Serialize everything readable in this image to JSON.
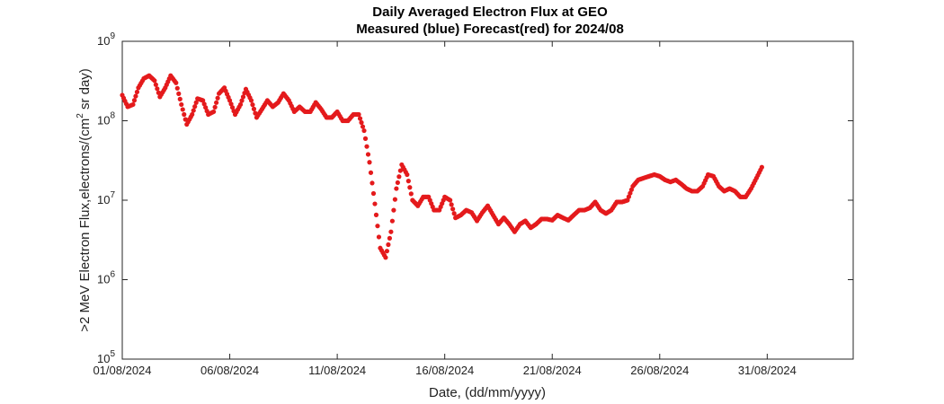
{
  "chart_data": {
    "type": "scatter",
    "title": "Daily Averaged Electron Flux at GEO",
    "subtitle": "Measured (blue) Forecast(red) for 2024/08",
    "xlabel": "Date, (dd/mm/yyyy)",
    "ylabel": ">2 MeV Electron Flux,electrons/(cm² sr day)",
    "ylabel_parts": [
      ">2 MeV Electron Flux,electrons/(cm",
      "2",
      " sr day)"
    ],
    "yscale": "log",
    "ylim": [
      100000,
      1000000000
    ],
    "xlim": [
      "01/08/2024 00:00",
      "04/09/2024 00:00"
    ],
    "x_ticks": [
      "01/08/2024",
      "06/08/2024",
      "11/08/2024",
      "16/08/2024",
      "21/08/2024",
      "26/08/2024",
      "31/08/2024"
    ],
    "y_ticks": [
      {
        "value": 100000,
        "base": "10",
        "exp": "5"
      },
      {
        "value": 1000000,
        "base": "10",
        "exp": "6"
      },
      {
        "value": 10000000,
        "base": "10",
        "exp": "7"
      },
      {
        "value": 100000000,
        "base": "10",
        "exp": "8"
      },
      {
        "value": 1000000000,
        "base": "10",
        "exp": "9"
      }
    ],
    "grid": false,
    "series": [
      {
        "color": "#e41a1c",
        "marker": "circle",
        "points": [
          [
            "01/08/2024 00:00",
            210000000.0
          ],
          [
            "01/08/2024 06:00",
            150000000.0
          ],
          [
            "01/08/2024 12:00",
            160000000.0
          ],
          [
            "01/08/2024 18:00",
            260000000.0
          ],
          [
            "02/08/2024 00:00",
            340000000.0
          ],
          [
            "02/08/2024 06:00",
            370000000.0
          ],
          [
            "02/08/2024 12:00",
            320000000.0
          ],
          [
            "02/08/2024 18:00",
            200000000.0
          ],
          [
            "03/08/2024 00:00",
            260000000.0
          ],
          [
            "03/08/2024 06:00",
            370000000.0
          ],
          [
            "03/08/2024 12:00",
            300000000.0
          ],
          [
            "03/08/2024 18:00",
            160000000.0
          ],
          [
            "04/08/2024 00:00",
            90000000.0
          ],
          [
            "04/08/2024 06:00",
            120000000.0
          ],
          [
            "04/08/2024 12:00",
            190000000.0
          ],
          [
            "04/08/2024 18:00",
            180000000.0
          ],
          [
            "05/08/2024 00:00",
            120000000.0
          ],
          [
            "05/08/2024 06:00",
            130000000.0
          ],
          [
            "05/08/2024 12:00",
            220000000.0
          ],
          [
            "05/08/2024 18:00",
            260000000.0
          ],
          [
            "06/08/2024 00:00",
            180000000.0
          ],
          [
            "06/08/2024 06:00",
            120000000.0
          ],
          [
            "06/08/2024 12:00",
            160000000.0
          ],
          [
            "06/08/2024 18:00",
            250000000.0
          ],
          [
            "07/08/2024 00:00",
            180000000.0
          ],
          [
            "07/08/2024 06:00",
            110000000.0
          ],
          [
            "07/08/2024 12:00",
            140000000.0
          ],
          [
            "07/08/2024 18:00",
            180000000.0
          ],
          [
            "08/08/2024 00:00",
            150000000.0
          ],
          [
            "08/08/2024 06:00",
            170000000.0
          ],
          [
            "08/08/2024 12:00",
            220000000.0
          ],
          [
            "08/08/2024 18:00",
            180000000.0
          ],
          [
            "09/08/2024 00:00",
            130000000.0
          ],
          [
            "09/08/2024 06:00",
            150000000.0
          ],
          [
            "09/08/2024 12:00",
            130000000.0
          ],
          [
            "09/08/2024 18:00",
            130000000.0
          ],
          [
            "10/08/2024 00:00",
            170000000.0
          ],
          [
            "10/08/2024 06:00",
            140000000.0
          ],
          [
            "10/08/2024 12:00",
            110000000.0
          ],
          [
            "10/08/2024 18:00",
            110000000.0
          ],
          [
            "11/08/2024 00:00",
            130000000.0
          ],
          [
            "11/08/2024 06:00",
            100000000.0
          ],
          [
            "11/08/2024 12:00",
            100000000.0
          ],
          [
            "11/08/2024 18:00",
            120000000.0
          ],
          [
            "12/08/2024 00:00",
            120000000.0
          ],
          [
            "12/08/2024 06:00",
            75000000.0
          ],
          [
            "12/08/2024 12:00",
            30000000.0
          ],
          [
            "12/08/2024 18:00",
            9000000.0
          ],
          [
            "13/08/2024 00:00",
            2500000.0
          ],
          [
            "13/08/2024 06:00",
            1900000.0
          ],
          [
            "13/08/2024 12:00",
            4000000.0
          ],
          [
            "13/08/2024 18:00",
            14000000.0
          ],
          [
            "14/08/2024 00:00",
            28000000.0
          ],
          [
            "14/08/2024 06:00",
            21000000.0
          ],
          [
            "14/08/2024 12:00",
            10000000.0
          ],
          [
            "14/08/2024 18:00",
            8500000.0
          ],
          [
            "15/08/2024 00:00",
            11000000.0
          ],
          [
            "15/08/2024 06:00",
            11000000.0
          ],
          [
            "15/08/2024 12:00",
            7500000.0
          ],
          [
            "15/08/2024 18:00",
            7500000.0
          ],
          [
            "16/08/2024 00:00",
            11000000.0
          ],
          [
            "16/08/2024 06:00",
            10000000.0
          ],
          [
            "16/08/2024 12:00",
            6000000.0
          ],
          [
            "16/08/2024 18:00",
            6500000.0
          ],
          [
            "17/08/2024 00:00",
            7500000.0
          ],
          [
            "17/08/2024 06:00",
            7000000.0
          ],
          [
            "17/08/2024 12:00",
            5500000.0
          ],
          [
            "17/08/2024 18:00",
            7000000.0
          ],
          [
            "18/08/2024 00:00",
            8500000.0
          ],
          [
            "18/08/2024 06:00",
            6500000.0
          ],
          [
            "18/08/2024 12:00",
            5000000.0
          ],
          [
            "18/08/2024 18:00",
            6000000.0
          ],
          [
            "19/08/2024 00:00",
            5000000.0
          ],
          [
            "19/08/2024 06:00",
            4000000.0
          ],
          [
            "19/08/2024 12:00",
            5000000.0
          ],
          [
            "19/08/2024 18:00",
            5500000.0
          ],
          [
            "20/08/2024 00:00",
            4500000.0
          ],
          [
            "20/08/2024 06:00",
            5000000.0
          ],
          [
            "20/08/2024 12:00",
            5800000.0
          ],
          [
            "20/08/2024 18:00",
            5800000.0
          ],
          [
            "21/08/2024 00:00",
            5600000.0
          ],
          [
            "21/08/2024 06:00",
            6500000.0
          ],
          [
            "21/08/2024 12:00",
            6000000.0
          ],
          [
            "21/08/2024 18:00",
            5600000.0
          ],
          [
            "22/08/2024 00:00",
            6500000.0
          ],
          [
            "22/08/2024 06:00",
            7500000.0
          ],
          [
            "22/08/2024 12:00",
            7500000.0
          ],
          [
            "22/08/2024 18:00",
            8000000.0
          ],
          [
            "23/08/2024 00:00",
            9500000.0
          ],
          [
            "23/08/2024 06:00",
            7500000.0
          ],
          [
            "23/08/2024 12:00",
            6800000.0
          ],
          [
            "23/08/2024 18:00",
            7500000.0
          ],
          [
            "24/08/2024 00:00",
            9500000.0
          ],
          [
            "24/08/2024 06:00",
            9500000.0
          ],
          [
            "24/08/2024 12:00",
            10000000.0
          ],
          [
            "24/08/2024 18:00",
            15000000.0
          ],
          [
            "25/08/2024 00:00",
            18000000.0
          ],
          [
            "25/08/2024 06:00",
            19000000.0
          ],
          [
            "25/08/2024 12:00",
            20000000.0
          ],
          [
            "25/08/2024 18:00",
            21000000.0
          ],
          [
            "26/08/2024 00:00",
            20000000.0
          ],
          [
            "26/08/2024 06:00",
            18000000.0
          ],
          [
            "26/08/2024 12:00",
            17000000.0
          ],
          [
            "26/08/2024 18:00",
            18000000.0
          ],
          [
            "27/08/2024 00:00",
            16000000.0
          ],
          [
            "27/08/2024 06:00",
            14000000.0
          ],
          [
            "27/08/2024 12:00",
            13000000.0
          ],
          [
            "27/08/2024 18:00",
            13000000.0
          ],
          [
            "28/08/2024 00:00",
            15000000.0
          ],
          [
            "28/08/2024 06:00",
            21000000.0
          ],
          [
            "28/08/2024 12:00",
            20000000.0
          ],
          [
            "28/08/2024 18:00",
            15000000.0
          ],
          [
            "29/08/2024 00:00",
            13000000.0
          ],
          [
            "29/08/2024 06:00",
            14000000.0
          ],
          [
            "29/08/2024 12:00",
            13000000.0
          ],
          [
            "29/08/2024 18:00",
            11000000.0
          ],
          [
            "30/08/2024 00:00",
            11000000.0
          ],
          [
            "30/08/2024 06:00",
            14000000.0
          ],
          [
            "30/08/2024 12:00",
            19000000.0
          ],
          [
            "30/08/2024 18:00",
            26000000.0
          ]
        ]
      }
    ]
  }
}
